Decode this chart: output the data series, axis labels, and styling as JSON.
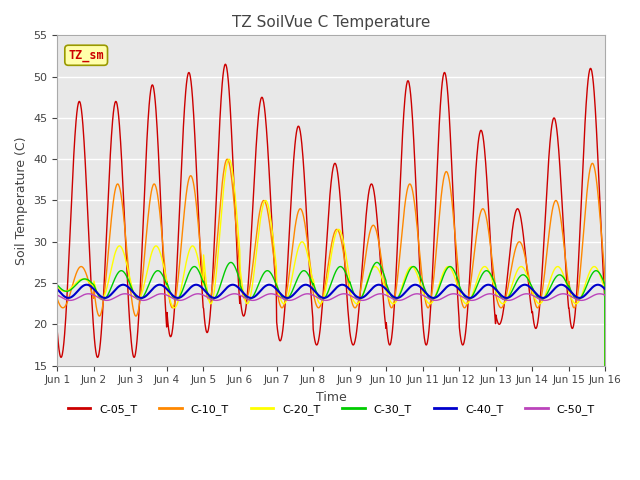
{
  "title": "TZ SoilVue C Temperature",
  "xlabel": "Time",
  "ylabel": "Soil Temperature (C)",
  "ylim": [
    15,
    55
  ],
  "xlim": [
    0,
    15
  ],
  "xtick_labels": [
    "Jun 1",
    "Jun 2",
    "Jun 3",
    "Jun 4",
    "Jun 5",
    "Jun 6",
    "Jun 7",
    "Jun 8",
    "Jun 9",
    "Jun 10",
    "Jun 11",
    "Jun 12",
    "Jun 13",
    "Jun 14",
    "Jun 15",
    "Jun 16"
  ],
  "ytick_values": [
    15,
    20,
    25,
    30,
    35,
    40,
    45,
    50,
    55
  ],
  "line_colors": {
    "C-05_T": "#cc0000",
    "C-10_T": "#ff8800",
    "C-20_T": "#ffff00",
    "C-30_T": "#00cc00",
    "C-40_T": "#0000cc",
    "C-50_T": "#bb44bb"
  },
  "annotation_text": "TZ_sm",
  "annotation_color": "#cc0000",
  "annotation_bg": "#ffffaa",
  "plot_bg": "#e8e8e8",
  "fig_bg": "#ffffff",
  "grid_color": "#ffffff"
}
